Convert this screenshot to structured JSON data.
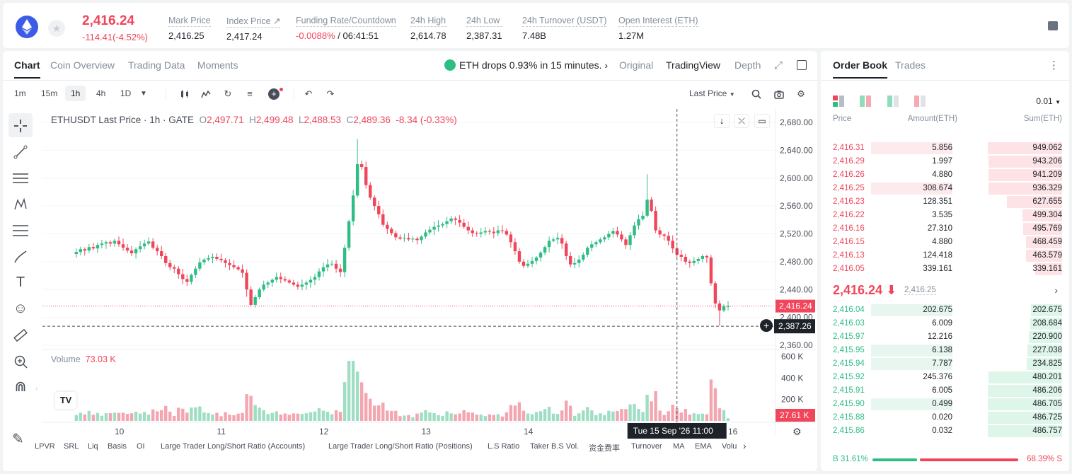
{
  "ticker": {
    "price": "2,416.24",
    "change": "-114.41(-4.52%)",
    "stats": [
      {
        "label": "Mark Price",
        "value": "2,416.25"
      },
      {
        "label": "Index Price ↗",
        "value": "2,417.24"
      },
      {
        "label": "Funding Rate/Countdown",
        "value_red": "-0.0088%",
        "value": "/ 06:41:51"
      },
      {
        "label": "24h High",
        "value": "2,614.78"
      },
      {
        "label": "24h Low",
        "value": "2,387.31"
      },
      {
        "label": "24h Turnover (USDT)",
        "value": "7.48B"
      },
      {
        "label": "Open Interest (ETH)",
        "value": "1.27M"
      }
    ]
  },
  "chart_tabs": [
    "Chart",
    "Coin Overview",
    "Trading Data",
    "Moments"
  ],
  "news": "ETH drops 0.93% in 15 minutes. ›",
  "view_options": [
    "Original",
    "TradingView",
    "Depth"
  ],
  "timeframes": [
    "1m",
    "15m",
    "1h",
    "4h",
    "1D"
  ],
  "selected_timeframe": "1h",
  "price_source": "Last Price",
  "ohlc": {
    "symbol": "ETHUSDT Last Price · 1h · GATE",
    "o_label": "O",
    "o": "2,497.71",
    "h_label": "H",
    "h": "2,499.48",
    "l_label": "L",
    "l": "2,488.53",
    "c_label": "C",
    "c": "2,489.36",
    "change": "-8.34 (-0.33%)"
  },
  "volume_label": "Volume",
  "volume_value": "73.03 K",
  "indicators": [
    "LPVR",
    "SRL",
    "Liq",
    "Basis",
    "OI",
    "Large Trader Long/Short Ratio (Accounts)",
    "Large Trader Long/Short Ratio (Positions)",
    "L.S Ratio",
    "Taker B.S Vol.",
    "资金费率",
    "Turnover",
    "MA",
    "EMA",
    "Volu"
  ],
  "chart_data": {
    "type": "candlestick",
    "title": "ETHUSDT Last Price · 1h · GATE",
    "y_ticks": [
      "2,680.00",
      "2,640.00",
      "2,600.00",
      "2,560.00",
      "2,520.00",
      "2,480.00",
      "2,440.00",
      "2,400.00",
      "2,360.00"
    ],
    "ylim": [
      2360,
      2680
    ],
    "x_ticks": [
      "10",
      "11",
      "12",
      "13",
      "14",
      "16"
    ],
    "x_tick_hours": [
      0,
      24,
      48,
      72,
      96,
      144
    ],
    "crosshair_label": "Tue 15 Sep '26   11:00",
    "crosshair_hour": 131,
    "last_price_label": "2,416.24",
    "last_price": 2416.24,
    "low_line_label": "2,387.26",
    "low_line": 2387.26,
    "volume_ticks": [
      "600 K",
      "400 K",
      "200 K"
    ],
    "volume_last_label": "27.61 K",
    "close_series": [
      2494,
      2498,
      2496,
      2501,
      2499,
      2504,
      2506,
      2508,
      2506,
      2510,
      2505,
      2500,
      2496,
      2492,
      2498,
      2502,
      2506,
      2509,
      2500,
      2495,
      2488,
      2478,
      2472,
      2470,
      2462,
      2455,
      2451,
      2461,
      2470,
      2479,
      2483,
      2485,
      2487,
      2484,
      2482,
      2478,
      2475,
      2472,
      2469,
      2464,
      2440,
      2418,
      2429,
      2440,
      2447,
      2450,
      2454,
      2458,
      2455,
      2453,
      2450,
      2447,
      2444,
      2447,
      2450,
      2454,
      2458,
      2466,
      2472,
      2476,
      2477,
      2470,
      2465,
      2500,
      2538,
      2575,
      2620,
      2616,
      2590,
      2572,
      2560,
      2548,
      2533,
      2527,
      2521,
      2515,
      2513,
      2514,
      2512,
      2513,
      2511,
      2516,
      2522,
      2526,
      2530,
      2532,
      2534,
      2538,
      2542,
      2540,
      2536,
      2530,
      2525,
      2521,
      2520,
      2522,
      2524,
      2523,
      2521,
      2525,
      2524,
      2519,
      2508,
      2495,
      2480,
      2474,
      2477,
      2481,
      2486,
      2493,
      2501,
      2510,
      2512,
      2514,
      2506,
      2488,
      2476,
      2478,
      2483,
      2490,
      2500,
      2505,
      2508,
      2512,
      2515,
      2520,
      2524,
      2519,
      2512,
      2504,
      2518,
      2532,
      2541,
      2546,
      2569,
      2553,
      2525,
      2519,
      2517,
      2510,
      2499,
      2490,
      2487,
      2480,
      2478,
      2481,
      2484,
      2488,
      2486,
      2449,
      2420,
      2410,
      2416,
      2416
    ]
  },
  "orderbook": {
    "tabs": [
      "Order Book",
      "Trades"
    ],
    "precision": "0.01",
    "headers": [
      "Price",
      "Amount(ETH)",
      "Sum(ETH)"
    ],
    "asks": [
      {
        "price": "2,416.31",
        "amount": "5.856",
        "sum": "949.062",
        "amt_frac": 0.36,
        "sum_frac": 1.0
      },
      {
        "price": "2,416.29",
        "amount": "1.997",
        "sum": "943.206",
        "amt_frac": 0.0,
        "sum_frac": 0.99
      },
      {
        "price": "2,416.26",
        "amount": "4.880",
        "sum": "941.209",
        "amt_frac": 0.0,
        "sum_frac": 0.99
      },
      {
        "price": "2,416.25",
        "amount": "308.674",
        "sum": "936.329",
        "amt_frac": 0.36,
        "sum_frac": 0.99
      },
      {
        "price": "2,416.23",
        "amount": "128.351",
        "sum": "627.655",
        "amt_frac": 0.0,
        "sum_frac": 0.74
      },
      {
        "price": "2,416.22",
        "amount": "3.535",
        "sum": "499.304",
        "amt_frac": 0.0,
        "sum_frac": 0.53
      },
      {
        "price": "2,416.16",
        "amount": "27.310",
        "sum": "495.769",
        "amt_frac": 0.0,
        "sum_frac": 0.52
      },
      {
        "price": "2,416.15",
        "amount": "4.880",
        "sum": "468.459",
        "amt_frac": 0.0,
        "sum_frac": 0.49
      },
      {
        "price": "2,416.13",
        "amount": "124.418",
        "sum": "463.579",
        "amt_frac": 0.0,
        "sum_frac": 0.49
      },
      {
        "price": "2,416.05",
        "amount": "339.161",
        "sum": "339.161",
        "amt_frac": 0.0,
        "sum_frac": 0.36
      }
    ],
    "mid_price": "2,416.24 ⬇",
    "mid_sub": "2,416.25",
    "bids": [
      {
        "price": "2,416.04",
        "amount": "202.675",
        "sum": "202.675",
        "amt_frac": 0.36,
        "sum_frac": 0.42
      },
      {
        "price": "2,416.03",
        "amount": "6.009",
        "sum": "208.684",
        "amt_frac": 0.0,
        "sum_frac": 0.43
      },
      {
        "price": "2,415.97",
        "amount": "12.216",
        "sum": "220.900",
        "amt_frac": 0.0,
        "sum_frac": 0.45
      },
      {
        "price": "2,415.95",
        "amount": "6.138",
        "sum": "227.038",
        "amt_frac": 0.36,
        "sum_frac": 0.47
      },
      {
        "price": "2,415.94",
        "amount": "7.787",
        "sum": "234.825",
        "amt_frac": 0.36,
        "sum_frac": 0.48
      },
      {
        "price": "2,415.92",
        "amount": "245.376",
        "sum": "480.201",
        "amt_frac": 0.0,
        "sum_frac": 0.99
      },
      {
        "price": "2,415.91",
        "amount": "6.005",
        "sum": "486.206",
        "amt_frac": 0.0,
        "sum_frac": 1.0
      },
      {
        "price": "2,415.90",
        "amount": "0.499",
        "sum": "486.705",
        "amt_frac": 0.36,
        "sum_frac": 1.0
      },
      {
        "price": "2,415.88",
        "amount": "0.020",
        "sum": "486.725",
        "amt_frac": 0.0,
        "sum_frac": 1.0
      },
      {
        "price": "2,415.86",
        "amount": "0.032",
        "sum": "486.757",
        "amt_frac": 0.0,
        "sum_frac": 1.0
      }
    ],
    "buy_ratio": "B 31.61%",
    "sell_ratio": "68.39% S",
    "buy_frac": 0.3161
  },
  "colors": {
    "up": "#2ebd85",
    "down": "#f0455a",
    "brand": "#3c5ce6"
  }
}
